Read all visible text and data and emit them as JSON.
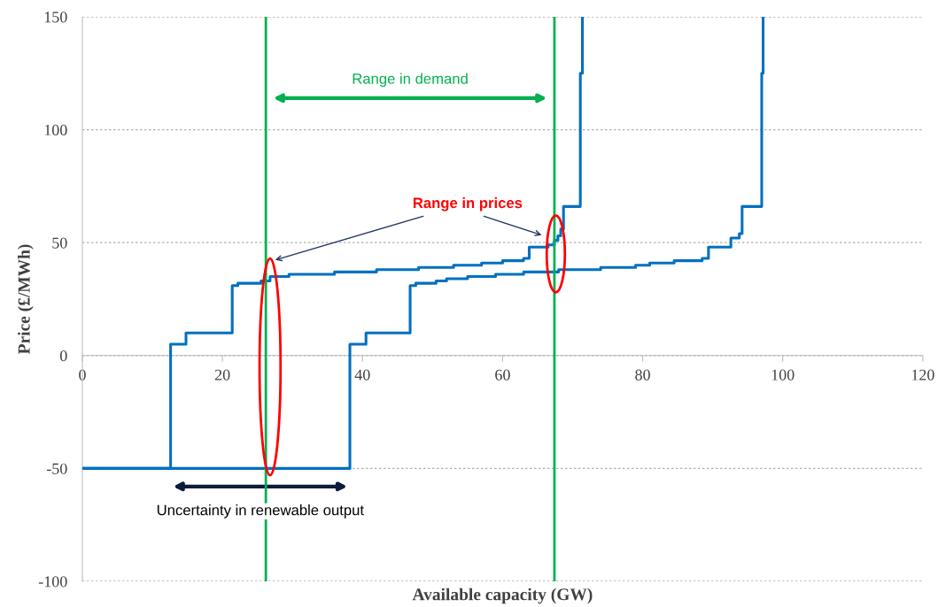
{
  "chart_data": {
    "type": "step",
    "xlabel": "Available capacity (GW)",
    "ylabel": "Price (£/MWh)",
    "series": [
      {
        "color": "#0070c0",
        "x": [
          0,
          12.6,
          14.8,
          21.4,
          22.2,
          25.5,
          26.8,
          29.5,
          36,
          42,
          48,
          53,
          57,
          60,
          63,
          63.8,
          66.5,
          67.4,
          67.9,
          68.3,
          68.7,
          71.1,
          71.4
        ],
        "values": [
          -50,
          5,
          10,
          31,
          32,
          33,
          35,
          36,
          37,
          38,
          39,
          40,
          41,
          42,
          43,
          48,
          49,
          51,
          53,
          56,
          66,
          125,
          150
        ]
      },
      {
        "color": "#0070c0",
        "x": [
          0,
          38.2,
          40.5,
          46.8,
          47.6,
          50.5,
          52,
          55,
          59,
          63,
          68,
          74,
          79,
          81,
          84.5,
          88.5,
          89.4,
          92.6,
          93.8,
          94.2,
          97,
          97.2
        ],
        "values": [
          -50,
          5,
          10,
          31,
          32,
          33,
          34,
          35,
          36,
          37,
          38,
          39,
          40,
          41,
          42,
          43,
          48,
          52,
          54,
          66,
          125,
          150
        ]
      }
    ],
    "xlim": [
      0,
      120
    ],
    "xticks": [
      0,
      20,
      40,
      60,
      80,
      100,
      120
    ],
    "ylim": [
      -100,
      150
    ],
    "yticks": [
      -100,
      -50,
      0,
      50,
      100,
      150
    ],
    "grid": "y",
    "ref_lines": [
      {
        "axis": "x",
        "value": 26.2,
        "color": "#00b050"
      },
      {
        "axis": "x",
        "value": 67.4,
        "color": "#00b050"
      }
    ],
    "annotations": [
      "Range in demand",
      "Range in prices",
      "Uncertainty in renewable output"
    ]
  }
}
